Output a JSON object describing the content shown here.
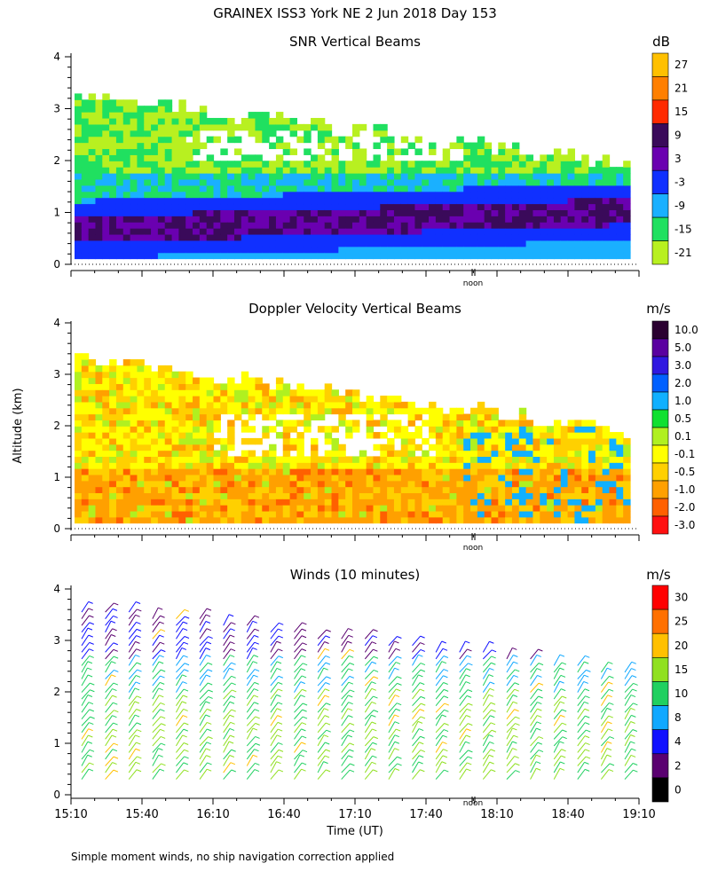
{
  "figure": {
    "title": "GRAINEX ISS3 York NE   2 Jun 2018 Day 153",
    "y_label": "Altitude (km)",
    "x_label": "Time (UT)",
    "noon_label": "noon",
    "footnote": "Simple moment winds, no ship navigation correction applied"
  },
  "chart_data": [
    {
      "type": "heatmap",
      "title": "SNR Vertical Beams",
      "units": "dB",
      "ylim": [
        0,
        4
      ],
      "yticks": [
        "0",
        "1",
        "2",
        "3",
        "4"
      ],
      "xlim": [
        "15:10",
        "19:10"
      ],
      "colorbar": [
        {
          "label": "27",
          "color": "#ffc000"
        },
        {
          "label": "21",
          "color": "#ff7f00"
        },
        {
          "label": "15",
          "color": "#ff2a00"
        },
        {
          "label": "9",
          "color": "#3a0a5a"
        },
        {
          "label": "3",
          "color": "#6a00b0"
        },
        {
          "label": "-3",
          "color": "#1030ff"
        },
        {
          "label": "-9",
          "color": "#1ab0ff"
        },
        {
          "label": "-15",
          "color": "#20e060"
        },
        {
          "label": "-21",
          "color": "#b8f020"
        }
      ]
    },
    {
      "type": "heatmap",
      "title": "Doppler Velocity Vertical Beams",
      "units": "m/s",
      "ylim": [
        0,
        4
      ],
      "yticks": [
        "0",
        "1",
        "2",
        "3",
        "4"
      ],
      "xlim": [
        "15:10",
        "19:10"
      ],
      "colorbar": [
        {
          "label": "10.0",
          "color": "#2a0030"
        },
        {
          "label": "5.0",
          "color": "#5a00a0"
        },
        {
          "label": "3.0",
          "color": "#3018e0"
        },
        {
          "label": "2.0",
          "color": "#0060ff"
        },
        {
          "label": "1.0",
          "color": "#10b0ff"
        },
        {
          "label": "0.5",
          "color": "#10e030"
        },
        {
          "label": "0.1",
          "color": "#b0f020"
        },
        {
          "label": "-0.1",
          "color": "#ffff00"
        },
        {
          "label": "-0.5",
          "color": "#ffd000"
        },
        {
          "label": "-1.0",
          "color": "#ffa000"
        },
        {
          "label": "-2.0",
          "color": "#ff6000"
        },
        {
          "label": "-3.0",
          "color": "#ff1010"
        }
      ]
    },
    {
      "type": "wind-barbs",
      "title": "Winds (10 minutes)",
      "units": "m/s",
      "ylim": [
        0,
        4
      ],
      "yticks": [
        "0",
        "1",
        "2",
        "3",
        "4"
      ],
      "xticks": [
        "15:10",
        "15:40",
        "16:10",
        "16:40",
        "17:10",
        "17:40",
        "18:10",
        "18:40",
        "19:10"
      ],
      "colorbar": [
        {
          "label": "30",
          "color": "#ff0000"
        },
        {
          "label": "25",
          "color": "#ff7000"
        },
        {
          "label": "20",
          "color": "#ffc000"
        },
        {
          "label": "15",
          "color": "#90e020"
        },
        {
          "label": "10",
          "color": "#20d060"
        },
        {
          "label": "8",
          "color": "#10a8ff"
        },
        {
          "label": "4",
          "color": "#1010ff"
        },
        {
          "label": "2",
          "color": "#5a0070"
        },
        {
          "label": "0",
          "color": "#000000"
        }
      ]
    }
  ],
  "colors": {
    "snr_low": "#b8f020",
    "snr_mid": "#20e060",
    "snr_high": "#1030ff",
    "doppler_main": "#ffd000",
    "doppler_warm": "#ffa000",
    "barb_low": "#20d060",
    "barb_mid": "#90e020",
    "barb_high": "#6a00b0"
  }
}
